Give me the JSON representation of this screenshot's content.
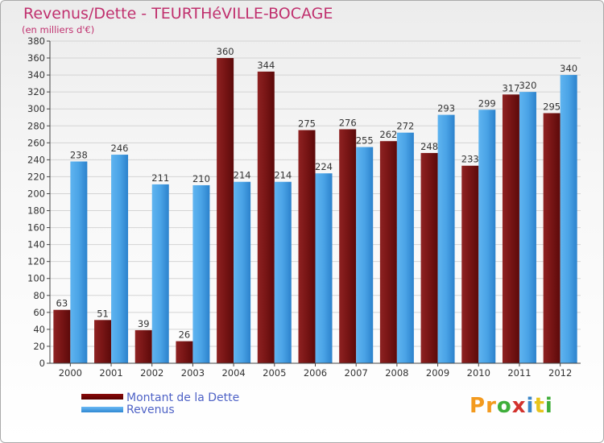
{
  "header": {
    "title": "Revenus/Dette - TEURTHéVILLE-BOCAGE",
    "subtitle": "(en milliers d'€)"
  },
  "legend": {
    "debt_label": "Montant de la Dette",
    "revenue_label": "Revenus"
  },
  "logo": {
    "text": "Proxiti",
    "colors": [
      "#f39a1e",
      "#f39a1e",
      "#3fae3a",
      "#d2322d",
      "#3a86c8",
      "#e8c41c",
      "#3fae3a"
    ]
  },
  "colors": {
    "debt": "#7a1515",
    "revenue": "#4aa3e6",
    "title": "#c0306e",
    "legend_text": "#4e62c6"
  },
  "chart_data": {
    "type": "bar",
    "title": "Revenus/Dette - TEURTHéVILLE-BOCAGE",
    "subtitle": "(en milliers d'€)",
    "xlabel": "",
    "ylabel": "",
    "ylim": [
      0,
      380
    ],
    "ytick_step": 20,
    "grid": true,
    "legend_position": "bottom-left",
    "categories": [
      "2000",
      "2001",
      "2002",
      "2003",
      "2004",
      "2005",
      "2006",
      "2007",
      "2008",
      "2009",
      "2010",
      "2011",
      "2012"
    ],
    "series": [
      {
        "name": "Montant de la Dette",
        "values": [
          63,
          51,
          39,
          26,
          360,
          344,
          275,
          276,
          262,
          248,
          233,
          317,
          295
        ]
      },
      {
        "name": "Revenus",
        "values": [
          238,
          246,
          211,
          210,
          214,
          214,
          224,
          255,
          272,
          293,
          299,
          320,
          340
        ]
      }
    ]
  }
}
